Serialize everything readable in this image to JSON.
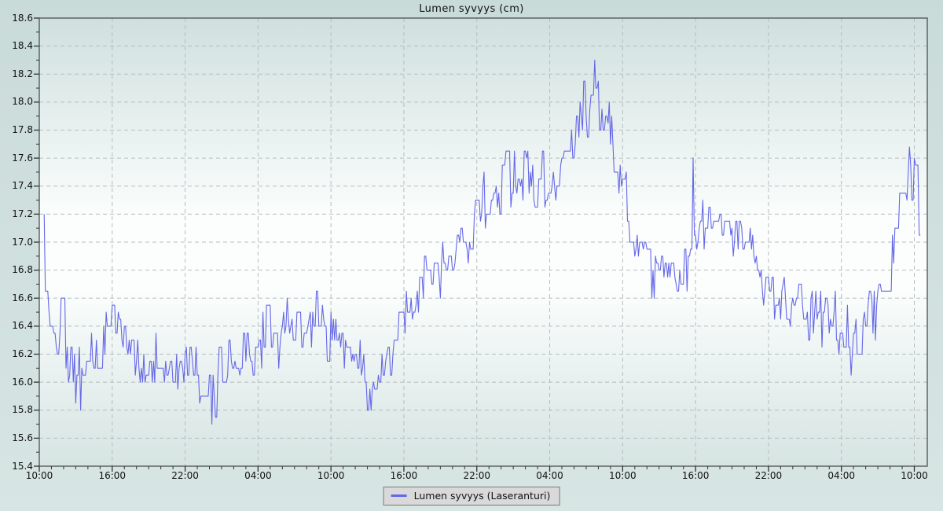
{
  "window": {
    "title": "Lumen syvyys (cm)"
  },
  "chart_data": {
    "type": "line",
    "title": "Lumen syvyys (cm)",
    "xlabel": "",
    "ylabel": "",
    "ylim": [
      15.4,
      18.6
    ],
    "y_tick_step": 0.2,
    "y_minor_step": 0.1,
    "y_tick_labels": [
      "15.4",
      "15.6",
      "15.8",
      "16.0",
      "16.2",
      "16.4",
      "16.6",
      "16.8",
      "17.0",
      "17.2",
      "17.4",
      "17.6",
      "17.8",
      "18.0",
      "18.2",
      "18.4",
      "18.6"
    ],
    "x_span_hours": 72.6,
    "x_tick_interval_hours": 6,
    "x_minor_interval_hours": 1,
    "x_tick_labels": [
      "10:00",
      "16:00",
      "22:00",
      "04:00",
      "10:00",
      "16:00",
      "22:00",
      "04:00",
      "10:00",
      "16:00",
      "22:00",
      "04:00",
      "10:00"
    ],
    "grid": "dashed gridlines at major ticks, both axes",
    "legend_position": "bottom-center",
    "series": [
      {
        "name": "Lumen syvyys (Laseranturi)",
        "color": "#6567e8",
        "start_hour": 0.4,
        "end_hour": 72.55,
        "trend_hours_step": 1,
        "trend_values": [
          17.0,
          16.4,
          16.35,
          16.0,
          16.1,
          16.35,
          16.45,
          16.3,
          16.15,
          16.1,
          16.15,
          16.15,
          16.1,
          16.05,
          15.95,
          16.05,
          16.1,
          16.15,
          16.25,
          16.3,
          16.35,
          16.4,
          16.4,
          16.4,
          16.42,
          16.25,
          16.1,
          16.0,
          16.05,
          16.25,
          16.5,
          16.6,
          16.75,
          16.85,
          16.85,
          16.95,
          17.1,
          17.3,
          17.4,
          17.45,
          17.5,
          17.45,
          17.38,
          17.6,
          17.85,
          18.0,
          18.05,
          17.8,
          17.5,
          16.95,
          16.8,
          16.8,
          16.75,
          16.85,
          17.1,
          17.15,
          17.15,
          17.1,
          17.1,
          17.0,
          16.65,
          16.55,
          16.55,
          16.5,
          16.5,
          16.45,
          16.42,
          16.35,
          16.45,
          16.55,
          16.8,
          17.3,
          17.5
        ],
        "tail_point": [
          72.55,
          17.1
        ],
        "events": [
          [
            0.45,
            17.2
          ],
          [
            3.4,
            15.8
          ],
          [
            14.15,
            15.7
          ],
          [
            27.3,
            15.8
          ],
          [
            45.7,
            18.3
          ],
          [
            53.85,
            17.6
          ],
          [
            66.8,
            16.05
          ],
          [
            71.6,
            17.68
          ]
        ],
        "noise": {
          "amplitude": 0.27,
          "quantize": 0.05,
          "sample_step_hours": 0.1,
          "spike_probability": 0.03,
          "hold_probability": 0.3,
          "seed": 1337
        }
      }
    ],
    "colors": {
      "line": "#6567e8",
      "grid": "#b6bdbd",
      "axis": "#565b5b",
      "tick": "#333333",
      "text": "#111111",
      "plot_bg_top": "#d0e0de",
      "plot_bg_light": "#fbfefd",
      "plot_bg_bottom": "#d6e4e2",
      "page_bg": "#cddedc",
      "legend_bg": "#d9d9d9",
      "legend_border": "#7a7a7a"
    }
  },
  "legend": {
    "label": "Lumen syvyys (Laseranturi)"
  }
}
